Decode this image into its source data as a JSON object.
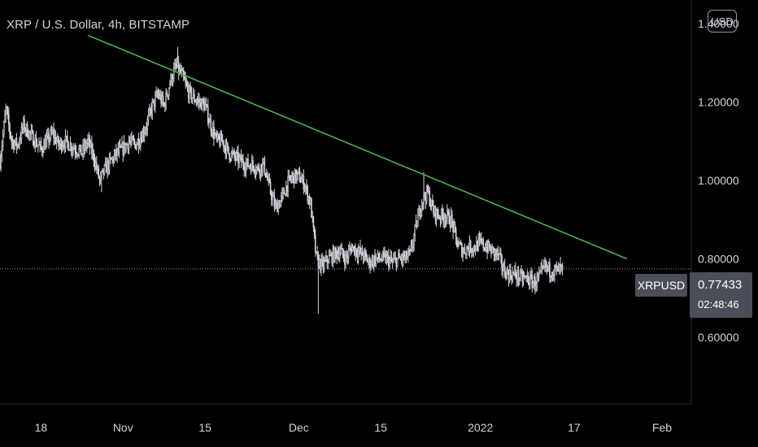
{
  "header": {
    "title": "XRP / U.S. Dollar, 4h, BITSTAMP",
    "currency_button": "USD"
  },
  "price_tag": {
    "symbol": "XRPUSD",
    "price": "0.77433",
    "countdown": "02:48:46"
  },
  "colors": {
    "background": "#000000",
    "candle": "#d1d4dc",
    "trendline": "#4caf50",
    "label_bg": "#4a4e58"
  },
  "chart_data": {
    "type": "candlestick",
    "title": "XRP / U.S. Dollar, 4h, BITSTAMP",
    "y_ticks": [
      "1.40000",
      "1.20000",
      "1.00000",
      "0.80000",
      "0.60000"
    ],
    "y_tick_values": [
      1.4,
      1.2,
      1.0,
      0.8,
      0.6
    ],
    "ylim": [
      0.43,
      1.46
    ],
    "x_ticks": [
      "18",
      "Nov",
      "15",
      "Dec",
      "15",
      "2022",
      "17",
      "Feb"
    ],
    "xlim": [
      "2021-10-11",
      "2022-02-06"
    ],
    "x_tick_dates": [
      "2021-10-18",
      "2021-11-01",
      "2021-11-15",
      "2021-12-01",
      "2021-12-15",
      "2022-01-01",
      "2022-01-17",
      "2022-02-01"
    ],
    "last_price": 0.77433,
    "grid": false,
    "trendline": {
      "from": {
        "date": "2021-10-26",
        "value": 1.37
      },
      "to": {
        "date": "2022-01-26",
        "value": 0.8
      }
    },
    "series_path": [
      [
        "2021-10-11",
        1.05
      ],
      [
        "2021-10-12",
        1.18
      ],
      [
        "2021-10-13",
        1.1
      ],
      [
        "2021-10-14",
        1.09
      ],
      [
        "2021-10-15",
        1.14
      ],
      [
        "2021-10-16",
        1.12
      ],
      [
        "2021-10-17",
        1.1
      ],
      [
        "2021-10-18",
        1.08
      ],
      [
        "2021-10-19",
        1.1
      ],
      [
        "2021-10-20",
        1.12
      ],
      [
        "2021-10-21",
        1.09
      ],
      [
        "2021-10-22",
        1.1
      ],
      [
        "2021-10-23",
        1.09
      ],
      [
        "2021-10-24",
        1.08
      ],
      [
        "2021-10-25",
        1.07
      ],
      [
        "2021-10-26",
        1.1
      ],
      [
        "2021-10-27",
        1.06
      ],
      [
        "2021-10-28",
        1.0
      ],
      [
        "2021-10-29",
        1.03
      ],
      [
        "2021-10-30",
        1.05
      ],
      [
        "2021-10-31",
        1.07
      ],
      [
        "2021-11-01",
        1.08
      ],
      [
        "2021-11-02",
        1.1
      ],
      [
        "2021-11-03",
        1.09
      ],
      [
        "2021-11-04",
        1.11
      ],
      [
        "2021-11-05",
        1.14
      ],
      [
        "2021-11-06",
        1.19
      ],
      [
        "2021-11-07",
        1.22
      ],
      [
        "2021-11-08",
        1.19
      ],
      [
        "2021-11-09",
        1.25
      ],
      [
        "2021-11-10",
        1.29
      ],
      [
        "2021-11-11",
        1.27
      ],
      [
        "2021-11-12",
        1.23
      ],
      [
        "2021-11-13",
        1.21
      ],
      [
        "2021-11-14",
        1.2
      ],
      [
        "2021-11-15",
        1.19
      ],
      [
        "2021-11-16",
        1.14
      ],
      [
        "2021-11-17",
        1.1
      ],
      [
        "2021-11-18",
        1.1
      ],
      [
        "2021-11-19",
        1.07
      ],
      [
        "2021-11-20",
        1.06
      ],
      [
        "2021-11-21",
        1.05
      ],
      [
        "2021-11-22",
        1.04
      ],
      [
        "2021-11-23",
        1.04
      ],
      [
        "2021-11-24",
        1.03
      ],
      [
        "2021-11-25",
        1.04
      ],
      [
        "2021-11-26",
        0.98
      ],
      [
        "2021-11-27",
        0.93
      ],
      [
        "2021-11-28",
        0.95
      ],
      [
        "2021-11-29",
        0.99
      ],
      [
        "2021-11-30",
        1.01
      ],
      [
        "2021-12-01",
        1.01
      ],
      [
        "2021-12-02",
        0.99
      ],
      [
        "2021-12-03",
        0.94
      ],
      [
        "2021-12-04",
        0.8
      ],
      [
        "2021-12-05",
        0.78
      ],
      [
        "2021-12-06",
        0.8
      ],
      [
        "2021-12-07",
        0.81
      ],
      [
        "2021-12-08",
        0.82
      ],
      [
        "2021-12-09",
        0.8
      ],
      [
        "2021-12-10",
        0.83
      ],
      [
        "2021-12-11",
        0.82
      ],
      [
        "2021-12-12",
        0.81
      ],
      [
        "2021-12-13",
        0.79
      ],
      [
        "2021-12-14",
        0.8
      ],
      [
        "2021-12-15",
        0.8
      ],
      [
        "2021-12-16",
        0.8
      ],
      [
        "2021-12-17",
        0.79
      ],
      [
        "2021-12-18",
        0.8
      ],
      [
        "2021-12-19",
        0.8
      ],
      [
        "2021-12-20",
        0.81
      ],
      [
        "2021-12-21",
        0.88
      ],
      [
        "2021-12-22",
        0.95
      ],
      [
        "2021-12-23",
        0.97
      ],
      [
        "2021-12-24",
        0.92
      ],
      [
        "2021-12-25",
        0.91
      ],
      [
        "2021-12-26",
        0.91
      ],
      [
        "2021-12-27",
        0.9
      ],
      [
        "2021-12-28",
        0.84
      ],
      [
        "2021-12-29",
        0.82
      ],
      [
        "2021-12-30",
        0.83
      ],
      [
        "2021-12-31",
        0.83
      ],
      [
        "2022-01-01",
        0.84
      ],
      [
        "2022-01-02",
        0.83
      ],
      [
        "2022-01-03",
        0.82
      ],
      [
        "2022-01-04",
        0.81
      ],
      [
        "2022-01-05",
        0.77
      ],
      [
        "2022-01-06",
        0.76
      ],
      [
        "2022-01-07",
        0.76
      ],
      [
        "2022-01-08",
        0.75
      ],
      [
        "2022-01-09",
        0.75
      ],
      [
        "2022-01-10",
        0.74
      ],
      [
        "2022-01-11",
        0.75
      ],
      [
        "2022-01-12",
        0.78
      ],
      [
        "2022-01-13",
        0.77
      ],
      [
        "2022-01-14",
        0.77
      ],
      [
        "2022-01-15",
        0.774
      ]
    ],
    "wicks": [
      {
        "date": "2021-11-10",
        "high": 1.34
      },
      {
        "date": "2021-12-04",
        "low": 0.66
      },
      {
        "date": "2021-10-28",
        "low": 0.97
      },
      {
        "date": "2021-12-22",
        "high": 1.02
      },
      {
        "date": "2022-01-10",
        "low": 0.71
      }
    ]
  }
}
